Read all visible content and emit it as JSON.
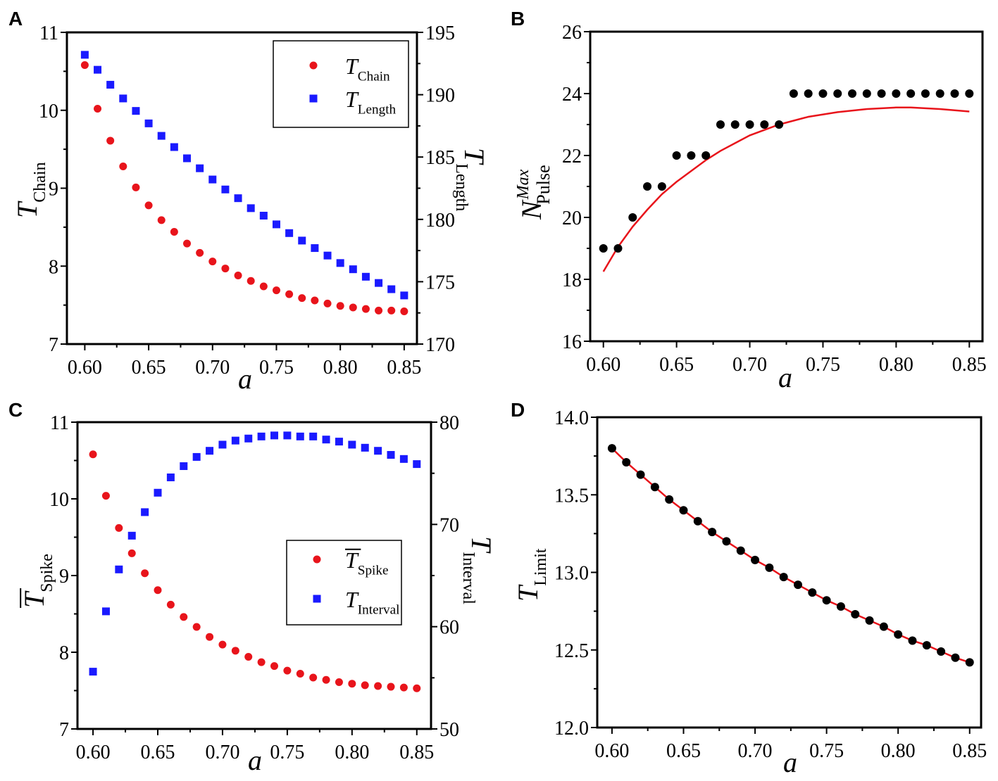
{
  "chart_data": [
    {
      "panel": "A",
      "type": "scatter",
      "x": [
        0.6,
        0.61,
        0.62,
        0.63,
        0.64,
        0.65,
        0.66,
        0.67,
        0.68,
        0.69,
        0.7,
        0.71,
        0.72,
        0.73,
        0.74,
        0.75,
        0.76,
        0.77,
        0.78,
        0.79,
        0.8,
        0.81,
        0.82,
        0.83,
        0.84,
        0.85
      ],
      "xlim": [
        0.586,
        0.86
      ],
      "xticks": [
        "0.60",
        "0.65",
        "0.70",
        "0.75",
        "0.80",
        "0.85"
      ],
      "xlabel": "a",
      "ylim_left": [
        7,
        11
      ],
      "yticks_left": [
        "7",
        "8",
        "9",
        "10",
        "11"
      ],
      "ylabel_left": {
        "main": "T",
        "sub": "Chain"
      },
      "ylim_right": [
        170,
        195
      ],
      "yticks_right": [
        "170",
        "175",
        "180",
        "185",
        "190",
        "195"
      ],
      "ylabel_right": {
        "main": "T",
        "sub": "Length"
      },
      "legend": "top-right",
      "series": [
        {
          "name": "T_Chain",
          "label": {
            "main": "T",
            "sub": "Chain"
          },
          "axis": "left",
          "marker": "circle",
          "color": "#e8141b",
          "values": [
            10.58,
            10.02,
            9.61,
            9.28,
            9.01,
            8.78,
            8.59,
            8.44,
            8.29,
            8.17,
            8.06,
            7.97,
            7.88,
            7.81,
            7.74,
            7.69,
            7.64,
            7.59,
            7.56,
            7.52,
            7.49,
            7.47,
            7.45,
            7.43,
            7.43,
            7.42
          ]
        },
        {
          "name": "T_Length",
          "label": {
            "main": "T",
            "sub": "Length"
          },
          "axis": "right",
          "marker": "square",
          "color": "#1a1aff",
          "values": [
            193.2,
            192.0,
            190.8,
            189.7,
            188.7,
            187.7,
            186.7,
            185.8,
            184.9,
            184.1,
            183.2,
            182.4,
            181.7,
            180.9,
            180.3,
            179.6,
            178.9,
            178.3,
            177.7,
            177.1,
            176.5,
            176.0,
            175.4,
            174.9,
            174.4,
            173.9
          ]
        }
      ]
    },
    {
      "panel": "B",
      "type": "scatter",
      "x": [
        0.6,
        0.61,
        0.62,
        0.63,
        0.64,
        0.65,
        0.66,
        0.67,
        0.68,
        0.69,
        0.7,
        0.71,
        0.72,
        0.73,
        0.74,
        0.75,
        0.76,
        0.77,
        0.78,
        0.79,
        0.8,
        0.81,
        0.82,
        0.83,
        0.84,
        0.85
      ],
      "xlim": [
        0.591,
        0.859
      ],
      "xticks": [
        "0.60",
        "0.65",
        "0.70",
        "0.75",
        "0.80",
        "0.85"
      ],
      "xlabel": "a",
      "ylim_left": [
        16,
        26
      ],
      "yticks_left": [
        "16",
        "18",
        "20",
        "22",
        "24",
        "26"
      ],
      "ylabel_left": {
        "main": "N",
        "sub": "Pulse",
        "sup": "Max"
      },
      "series": [
        {
          "name": "N_Pulse_Max",
          "axis": "left",
          "marker": "circle",
          "color": "#000000",
          "values": [
            19,
            19,
            20,
            21,
            21,
            22,
            22,
            22,
            23,
            23,
            23,
            23,
            23,
            24,
            24,
            24,
            24,
            24,
            24,
            24,
            24,
            24,
            24,
            24,
            24,
            24
          ]
        }
      ],
      "fit": {
        "color": "#e8141b",
        "x": [
          0.6,
          0.61,
          0.62,
          0.63,
          0.64,
          0.65,
          0.66,
          0.67,
          0.68,
          0.69,
          0.7,
          0.72,
          0.74,
          0.76,
          0.78,
          0.8,
          0.81,
          0.83,
          0.85
        ],
        "y": [
          18.25,
          19.05,
          19.7,
          20.25,
          20.75,
          21.15,
          21.5,
          21.85,
          22.15,
          22.4,
          22.65,
          23.0,
          23.25,
          23.4,
          23.5,
          23.55,
          23.55,
          23.5,
          23.42
        ]
      }
    },
    {
      "panel": "C",
      "type": "scatter",
      "x": [
        0.6,
        0.61,
        0.62,
        0.63,
        0.64,
        0.65,
        0.66,
        0.67,
        0.68,
        0.69,
        0.7,
        0.71,
        0.72,
        0.73,
        0.74,
        0.75,
        0.76,
        0.77,
        0.78,
        0.79,
        0.8,
        0.81,
        0.82,
        0.83,
        0.84,
        0.85
      ],
      "xlim": [
        0.588,
        0.861
      ],
      "xticks": [
        "0.60",
        "0.65",
        "0.70",
        "0.75",
        "0.80",
        "0.85"
      ],
      "xlabel": "a",
      "ylim_left": [
        7,
        11
      ],
      "yticks_left": [
        "7",
        "8",
        "9",
        "10",
        "11"
      ],
      "ylabel_left": {
        "main": "T",
        "sub": "Spike",
        "overbar": true
      },
      "ylim_right": [
        50,
        80
      ],
      "yticks_right": [
        "50",
        "60",
        "70",
        "80"
      ],
      "ylabel_right": {
        "main": "T",
        "sub": "Interval"
      },
      "legend": "center-right",
      "series": [
        {
          "name": "T_Spike_mean",
          "label": {
            "main": "T",
            "sub": "Spike",
            "overbar": true
          },
          "axis": "left",
          "marker": "circle",
          "color": "#e8141b",
          "values": [
            10.58,
            10.04,
            9.62,
            9.29,
            9.03,
            8.81,
            8.62,
            8.46,
            8.33,
            8.2,
            8.1,
            8.02,
            7.94,
            7.87,
            7.82,
            7.76,
            7.72,
            7.67,
            7.64,
            7.61,
            7.59,
            7.57,
            7.56,
            7.55,
            7.54,
            7.53
          ]
        },
        {
          "name": "T_Interval",
          "label": {
            "main": "T",
            "sub": "Interval"
          },
          "axis": "right",
          "marker": "square",
          "color": "#1a1aff",
          "values": [
            55.6,
            61.5,
            65.6,
            68.9,
            71.2,
            73.1,
            74.6,
            75.7,
            76.6,
            77.2,
            77.8,
            78.2,
            78.4,
            78.6,
            78.7,
            78.7,
            78.6,
            78.6,
            78.3,
            78.1,
            77.8,
            77.5,
            77.2,
            76.8,
            76.4,
            75.9
          ]
        }
      ]
    },
    {
      "panel": "D",
      "type": "scatter",
      "x": [
        0.6,
        0.61,
        0.62,
        0.63,
        0.64,
        0.65,
        0.66,
        0.67,
        0.68,
        0.69,
        0.7,
        0.71,
        0.72,
        0.73,
        0.74,
        0.75,
        0.76,
        0.77,
        0.78,
        0.79,
        0.8,
        0.81,
        0.82,
        0.83,
        0.84,
        0.85
      ],
      "xlim": [
        0.5897,
        0.858
      ],
      "xticks": [
        "0.60",
        "0.65",
        "0.70",
        "0.75",
        "0.80",
        "0.85"
      ],
      "xlabel": "a",
      "ylim_left": [
        12.0,
        14.0
      ],
      "yticks_left": [
        "12.0",
        "12.5",
        "13.0",
        "13.5",
        "14.0"
      ],
      "ylabel_left": {
        "main": "T",
        "sub": "Limit"
      },
      "series": [
        {
          "name": "T_Limit",
          "axis": "left",
          "marker": "circle",
          "color": "#000000",
          "values": [
            13.8,
            13.71,
            13.63,
            13.55,
            13.47,
            13.4,
            13.33,
            13.26,
            13.2,
            13.14,
            13.08,
            13.03,
            12.97,
            12.92,
            12.87,
            12.82,
            12.78,
            12.73,
            12.69,
            12.65,
            12.6,
            12.56,
            12.53,
            12.49,
            12.45,
            12.42
          ]
        }
      ],
      "fit": {
        "color": "#e8141b",
        "x": [
          0.6,
          0.61,
          0.62,
          0.63,
          0.64,
          0.65,
          0.66,
          0.67,
          0.68,
          0.69,
          0.7,
          0.71,
          0.72,
          0.73,
          0.74,
          0.75,
          0.76,
          0.77,
          0.78,
          0.79,
          0.8,
          0.81,
          0.82,
          0.83,
          0.84,
          0.85
        ],
        "y": [
          13.8,
          13.71,
          13.63,
          13.55,
          13.47,
          13.4,
          13.33,
          13.26,
          13.2,
          13.14,
          13.08,
          13.03,
          12.97,
          12.92,
          12.87,
          12.82,
          12.78,
          12.73,
          12.69,
          12.65,
          12.6,
          12.56,
          12.53,
          12.49,
          12.45,
          12.42
        ]
      }
    }
  ]
}
